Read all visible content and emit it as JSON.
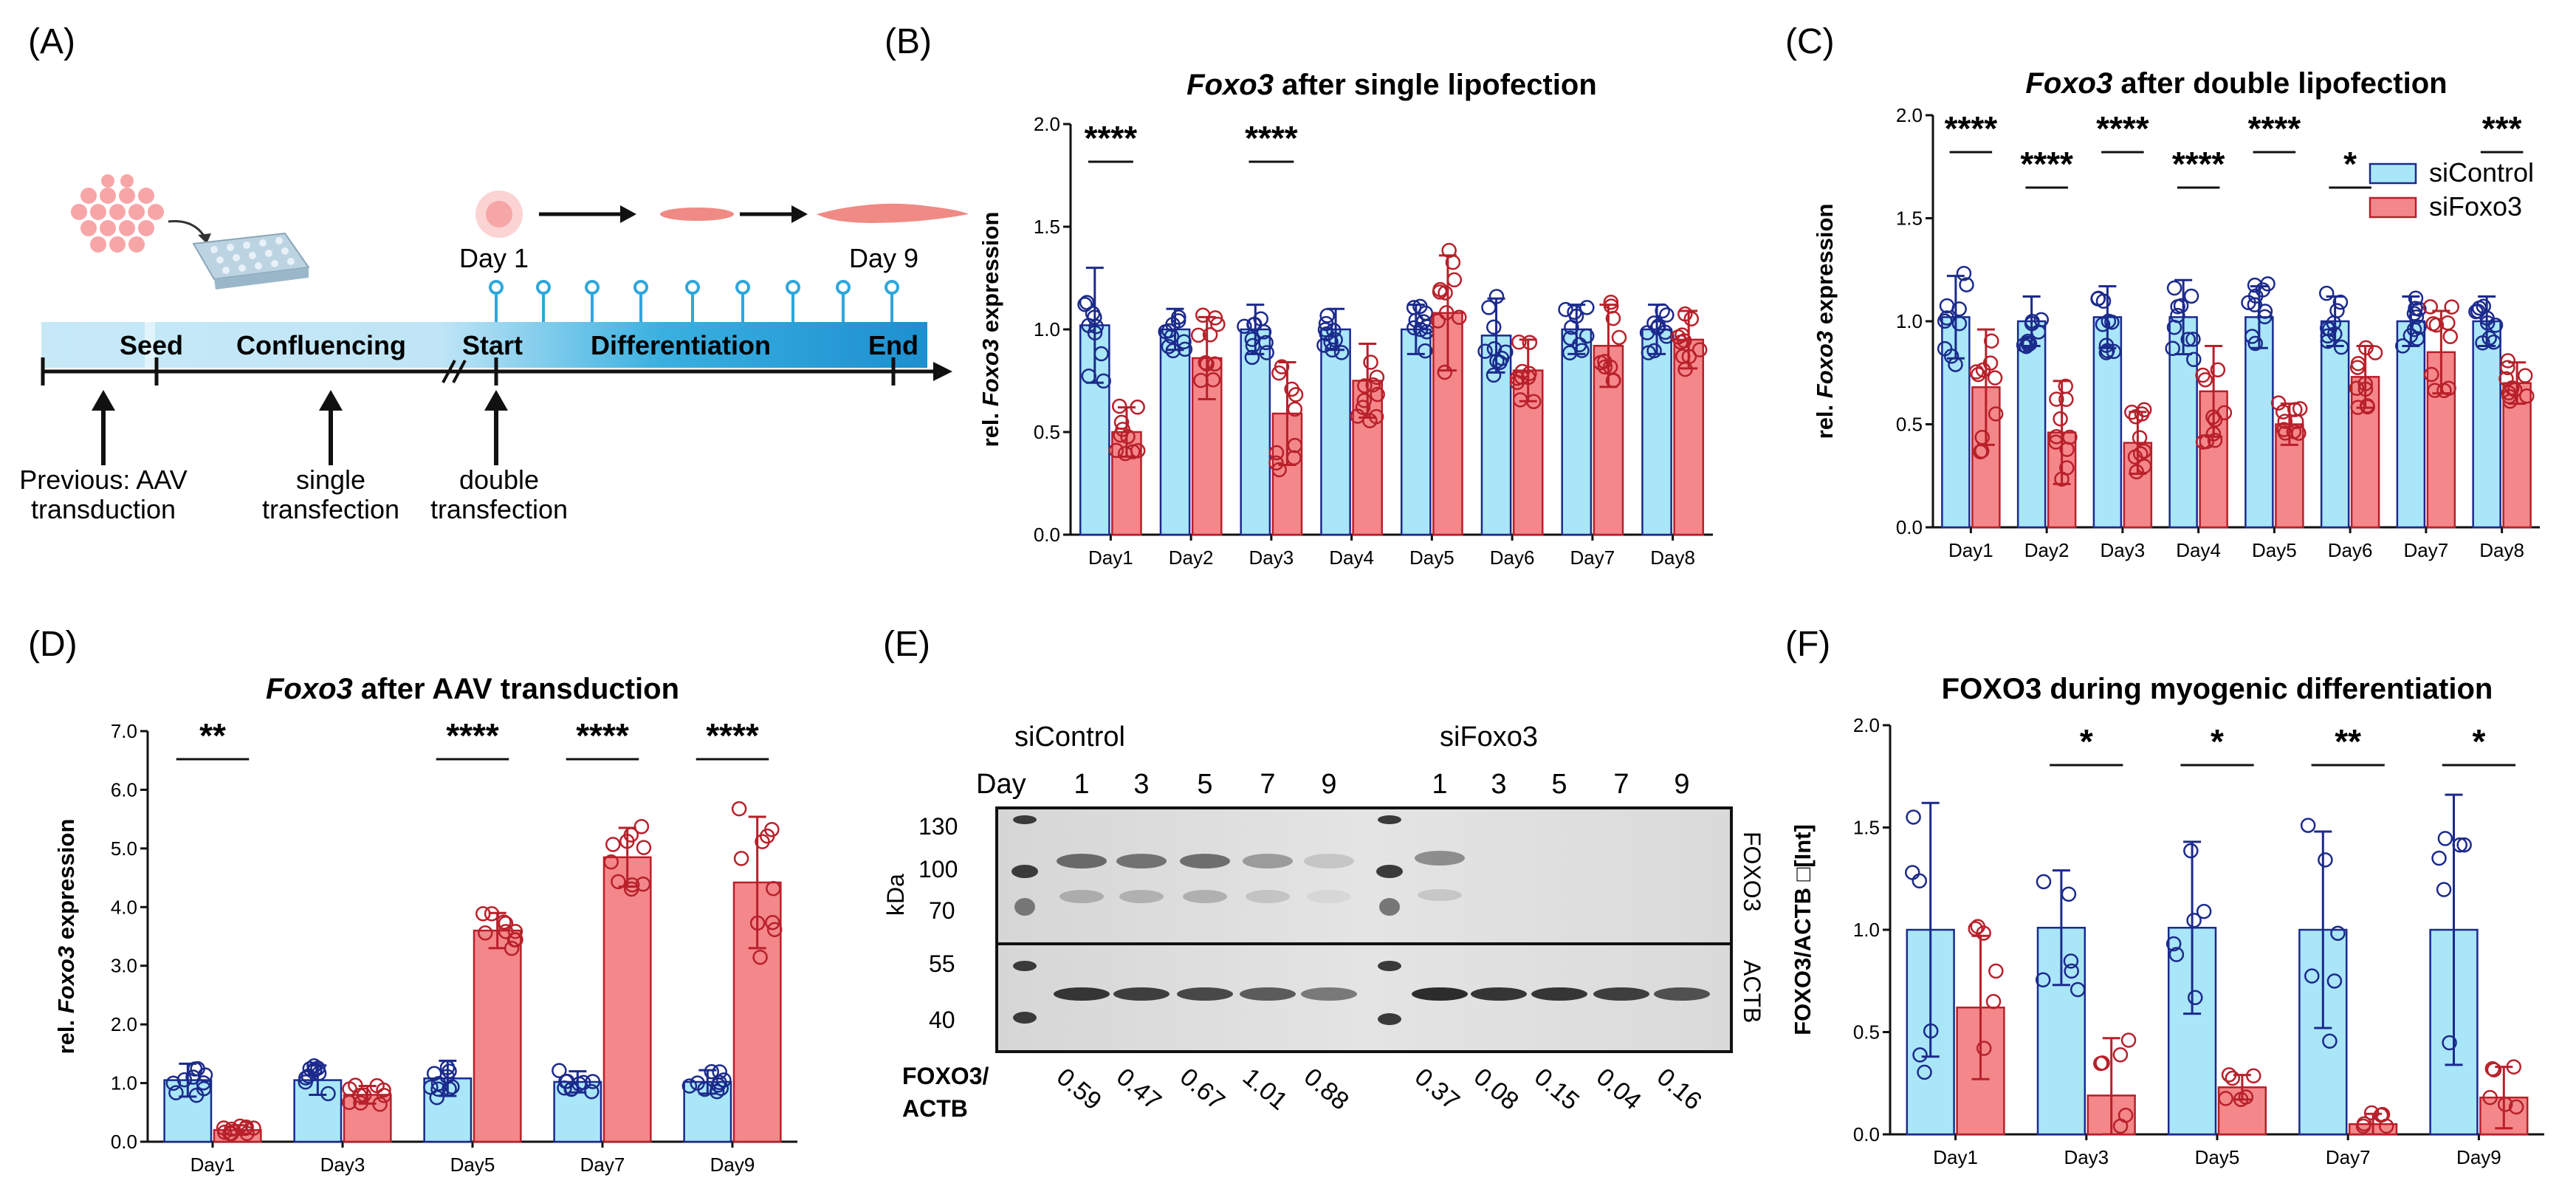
{
  "colors": {
    "control_fill": "#a9e6f7",
    "control_edge": "#1b2a8c",
    "foxo_fill": "#f4878a",
    "foxo_edge": "#b8202a",
    "timeline": "#2ea7dc"
  },
  "panel_a": {
    "label": "(A)",
    "day1": "Day 1",
    "day9": "Day 9",
    "phases": [
      "Seed",
      "Confluencing",
      "Start",
      "Differentiation",
      "End"
    ],
    "events": [
      "Previous: AAV",
      "transduction",
      "single",
      "transfection",
      "double",
      "transfection"
    ]
  },
  "chart_data": [
    {
      "id": "B",
      "label": "(B)",
      "type": "bar",
      "title_italic": "Foxo3",
      "title_rest": " after single lipofection",
      "ylabel_pre": "rel. ",
      "ylabel_italic": "Foxo3",
      "ylabel_post": " expression",
      "ylim": [
        0,
        2.0
      ],
      "yticks": [
        "0.0",
        "0.5",
        "1.0",
        "1.5",
        "2.0"
      ],
      "categories": [
        "Day1",
        "Day2",
        "Day3",
        "Day4",
        "Day5",
        "Day6",
        "Day7",
        "Day8"
      ],
      "series": [
        {
          "name": "siControl",
          "values": [
            1.02,
            1.0,
            1.0,
            1.0,
            1.0,
            0.97,
            1.0,
            1.0
          ],
          "err": [
            0.28,
            0.1,
            0.12,
            0.1,
            0.12,
            0.18,
            0.12,
            0.12
          ]
        },
        {
          "name": "siFoxo3",
          "values": [
            0.5,
            0.86,
            0.59,
            0.75,
            1.08,
            0.8,
            0.92,
            0.95
          ],
          "err": [
            0.12,
            0.2,
            0.25,
            0.18,
            0.28,
            0.15,
            0.2,
            0.14
          ]
        }
      ],
      "significance": [
        {
          "day": 0,
          "text": "****"
        },
        {
          "day": 2,
          "text": "****"
        }
      ],
      "legend": null
    },
    {
      "id": "C",
      "label": "(C)",
      "type": "bar",
      "title_italic": "Foxo3",
      "title_rest": " after double lipofection",
      "ylabel_pre": "rel. ",
      "ylabel_italic": "Foxo3",
      "ylabel_post": " expression",
      "ylim": [
        0,
        2.0
      ],
      "yticks": [
        "0.0",
        "0.5",
        "1.0",
        "1.5",
        "2.0"
      ],
      "categories": [
        "Day1",
        "Day2",
        "Day3",
        "Day4",
        "Day5",
        "Day6",
        "Day7",
        "Day8"
      ],
      "series": [
        {
          "name": "siControl",
          "values": [
            1.02,
            1.0,
            1.02,
            1.02,
            1.02,
            1.0,
            1.0,
            1.0
          ],
          "err": [
            0.2,
            0.12,
            0.15,
            0.18,
            0.15,
            0.12,
            0.12,
            0.12
          ]
        },
        {
          "name": "siFoxo3",
          "values": [
            0.68,
            0.46,
            0.41,
            0.66,
            0.5,
            0.73,
            0.85,
            0.7
          ],
          "err": [
            0.28,
            0.25,
            0.15,
            0.22,
            0.1,
            0.15,
            0.2,
            0.1
          ]
        }
      ],
      "significance": [
        {
          "day": 0,
          "text": "****"
        },
        {
          "day": 1,
          "text": "****"
        },
        {
          "day": 2,
          "text": "****"
        },
        {
          "day": 3,
          "text": "****"
        },
        {
          "day": 4,
          "text": "****"
        },
        {
          "day": 5,
          "text": "*"
        },
        {
          "day": 7,
          "text": "***"
        }
      ],
      "legend": [
        "siControl",
        "siFoxo3"
      ]
    },
    {
      "id": "D",
      "label": "(D)",
      "type": "bar",
      "title_italic": "Foxo3",
      "title_rest": " after AAV transduction",
      "ylabel_pre": "rel. ",
      "ylabel_italic": "Foxo3",
      "ylabel_post": " expression",
      "ylim": [
        0,
        7.0
      ],
      "yticks": [
        "0.0",
        "1.0",
        "2.0",
        "3.0",
        "4.0",
        "5.0",
        "6.0",
        "7.0"
      ],
      "categories": [
        "Day1",
        "Day3",
        "Day5",
        "Day7",
        "Day9"
      ],
      "series": [
        {
          "name": "siControl",
          "values": [
            1.05,
            1.05,
            1.08,
            1.02,
            1.02
          ],
          "err": [
            0.28,
            0.25,
            0.3,
            0.18,
            0.2
          ]
        },
        {
          "name": "siFoxo3",
          "values": [
            0.2,
            0.8,
            3.6,
            4.85,
            4.42
          ],
          "err": [
            0.08,
            0.15,
            0.3,
            0.5,
            1.12
          ]
        }
      ],
      "significance": [
        {
          "day": 0,
          "text": "**"
        },
        {
          "day": 2,
          "text": "****"
        },
        {
          "day": 3,
          "text": "****"
        },
        {
          "day": 4,
          "text": "****"
        }
      ],
      "legend": null
    },
    {
      "id": "F",
      "label": "(F)",
      "type": "bar",
      "title_italic": "",
      "title_rest": "FOXO3 during myogenic differentiation",
      "ylabel_pre": "FOXO3/ACTB □[Int]",
      "ylabel_italic": "",
      "ylabel_post": "",
      "ylim": [
        0,
        2.0
      ],
      "yticks": [
        "0.0",
        "0.5",
        "1.0",
        "1.5",
        "2.0"
      ],
      "categories": [
        "Day1",
        "Day3",
        "Day5",
        "Day7",
        "Day9"
      ],
      "series": [
        {
          "name": "siControl",
          "values": [
            1.0,
            1.01,
            1.01,
            1.0,
            1.0
          ],
          "err": [
            0.62,
            0.28,
            0.42,
            0.48,
            0.66
          ]
        },
        {
          "name": "siFoxo3",
          "values": [
            0.62,
            0.19,
            0.23,
            0.05,
            0.18
          ],
          "err": [
            0.35,
            0.28,
            0.06,
            0.05,
            0.15
          ]
        }
      ],
      "significance": [
        {
          "day": 1,
          "text": "*"
        },
        {
          "day": 2,
          "text": "*"
        },
        {
          "day": 3,
          "text": "**"
        },
        {
          "day": 4,
          "text": "*"
        }
      ],
      "legend": null
    }
  ],
  "panel_e": {
    "label": "(E)",
    "group1": "siControl",
    "group2": "siFoxo3",
    "day_label": "Day",
    "lanes1": [
      "1",
      "3",
      "5",
      "7",
      "9"
    ],
    "lanes2": [
      "1",
      "3",
      "5",
      "7",
      "9"
    ],
    "markers": [
      "130",
      "100",
      "70",
      "55",
      "40"
    ],
    "kda": "kDa",
    "band_top": "FOXO3",
    "band_bottom": "ACTB",
    "ratio_label_1": "FOXO3/",
    "ratio_label_2": "ACTB",
    "ratios1": [
      "0.59",
      "0.47",
      "0.67",
      "1.01",
      "0.88"
    ],
    "ratios2": [
      "0.37",
      "0.08",
      "0.15",
      "0.04",
      "0.16"
    ]
  }
}
